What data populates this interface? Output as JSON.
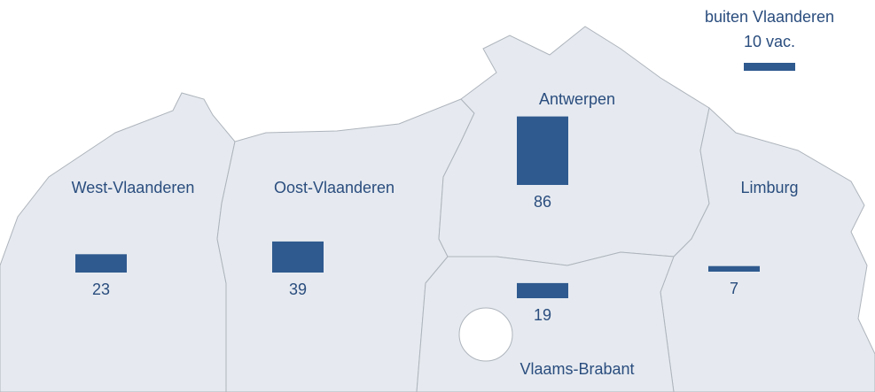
{
  "regions": [
    {
      "name": "West-Vlaanderen",
      "value": 23
    },
    {
      "name": "Oost-Vlaanderen",
      "value": 39
    },
    {
      "name": "Antwerpen",
      "value": 86
    },
    {
      "name": "Vlaams-Brabant",
      "value": 19
    },
    {
      "name": "Limburg",
      "value": 7
    },
    {
      "name": "buiten Vlaanderen",
      "value": 10,
      "value_label": "10 vac."
    }
  ],
  "bar_color": "#2f5a8f"
}
